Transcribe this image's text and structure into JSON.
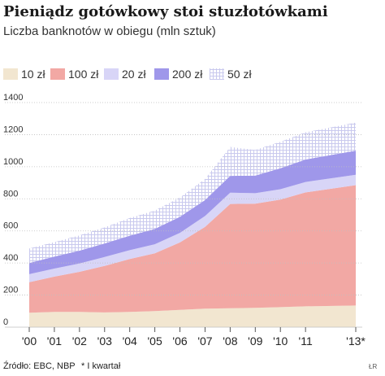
{
  "title": "Pieniądz gotówkowy stoi stuzłotówkami",
  "subtitle": "Liczba banknotów w obiegu (mln sztuk)",
  "source": "Źródło: EBC, NBP",
  "footnote": "* I kwartał",
  "credit": "ŁR",
  "colors": {
    "10": "#f2e6d0",
    "100": "#f2a8a4",
    "20": "#d8d5f7",
    "200": "#9f97ea",
    "50": "#c9c9ee",
    "grid": "#cccccc"
  },
  "chart_data": {
    "type": "area",
    "stacked": true,
    "x": [
      "'00",
      "'01",
      "'02",
      "'03",
      "'04",
      "'05",
      "'06",
      "'07",
      "'08",
      "'09",
      "'10",
      "'11",
      "'13*"
    ],
    "x_positions": [
      2000,
      2001,
      2002,
      2003,
      2004,
      2005,
      2006,
      2007,
      2008,
      2009,
      2010,
      2011,
      2013
    ],
    "ylim": [
      0,
      1400
    ],
    "yticks": [
      0,
      200,
      400,
      600,
      800,
      1000,
      1200,
      1400
    ],
    "grid": true,
    "legend_position": "top",
    "series": [
      {
        "name": "10 zł",
        "color": "#f2e6d0",
        "pattern": "solid",
        "values": [
          90,
          95,
          95,
          92,
          95,
          100,
          108,
          115,
          118,
          120,
          125,
          130,
          135
        ]
      },
      {
        "name": "100 zł",
        "color": "#f2a8a4",
        "pattern": "solid",
        "values": [
          190,
          220,
          250,
          290,
          330,
          360,
          420,
          510,
          650,
          650,
          670,
          710,
          750
        ]
      },
      {
        "name": "20 zł",
        "color": "#d8d5f7",
        "pattern": "solid",
        "values": [
          50,
          50,
          52,
          55,
          55,
          57,
          60,
          68,
          70,
          65,
          65,
          65,
          65
        ]
      },
      {
        "name": "200 zł",
        "color": "#9f97ea",
        "pattern": "solid",
        "values": [
          70,
          75,
          80,
          85,
          90,
          95,
          100,
          100,
          105,
          110,
          130,
          140,
          150
        ]
      },
      {
        "name": "50 zł",
        "color": "#c9c9ee",
        "pattern": "checker",
        "values": [
          90,
          90,
          95,
          100,
          110,
          115,
          120,
          130,
          180,
          160,
          165,
          170,
          175
        ]
      }
    ]
  }
}
